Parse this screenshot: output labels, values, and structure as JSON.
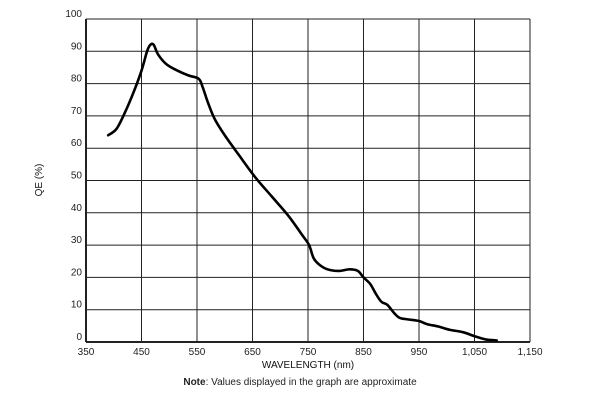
{
  "chart_data": {
    "type": "line",
    "title": "",
    "xlabel": "WAVELENGTH (nm)",
    "ylabel": "QE (%)",
    "xlim": [
      350,
      1150
    ],
    "ylim": [
      0,
      100
    ],
    "grid": true,
    "x_ticks": [
      350,
      450,
      550,
      650,
      750,
      850,
      950,
      1050,
      1150
    ],
    "x_tick_labels": [
      "350",
      "450",
      "550",
      "650",
      "750",
      "850",
      "950",
      "1,050",
      "1,150"
    ],
    "y_ticks": [
      0,
      10,
      20,
      30,
      40,
      50,
      60,
      70,
      80,
      90,
      100
    ],
    "y_tick_labels": [
      "0",
      "10",
      "20",
      "30",
      "40",
      "50",
      "60",
      "70",
      "80",
      "90",
      "100"
    ],
    "series": [
      {
        "name": "QE",
        "color": "#000000",
        "x": [
          390,
          405,
          420,
          435,
          450,
          460,
          466,
          472,
          480,
          495,
          515,
          535,
          553,
          560,
          570,
          582,
          600,
          625,
          655,
          685,
          715,
          740,
          752,
          760,
          770,
          785,
          805,
          825,
          840,
          850,
          862,
          872,
          882,
          893,
          905,
          915,
          930,
          950,
          965,
          985,
          1005,
          1030,
          1050,
          1070,
          1090
        ],
        "y": [
          64,
          66,
          71,
          77,
          84,
          90,
          92,
          92,
          89,
          86,
          84,
          82.5,
          81.5,
          79,
          74,
          69,
          64,
          58,
          51,
          45,
          39,
          33,
          30,
          26,
          24,
          22.5,
          22,
          22.5,
          22,
          20,
          18,
          15,
          12.5,
          11.5,
          9,
          7.5,
          7,
          6.5,
          5.5,
          4.8,
          3.8,
          3,
          1.8,
          0.8,
          0.5
        ]
      }
    ]
  },
  "note": {
    "label": "Note",
    "text": ": Values displayed in the graph are approximate"
  }
}
